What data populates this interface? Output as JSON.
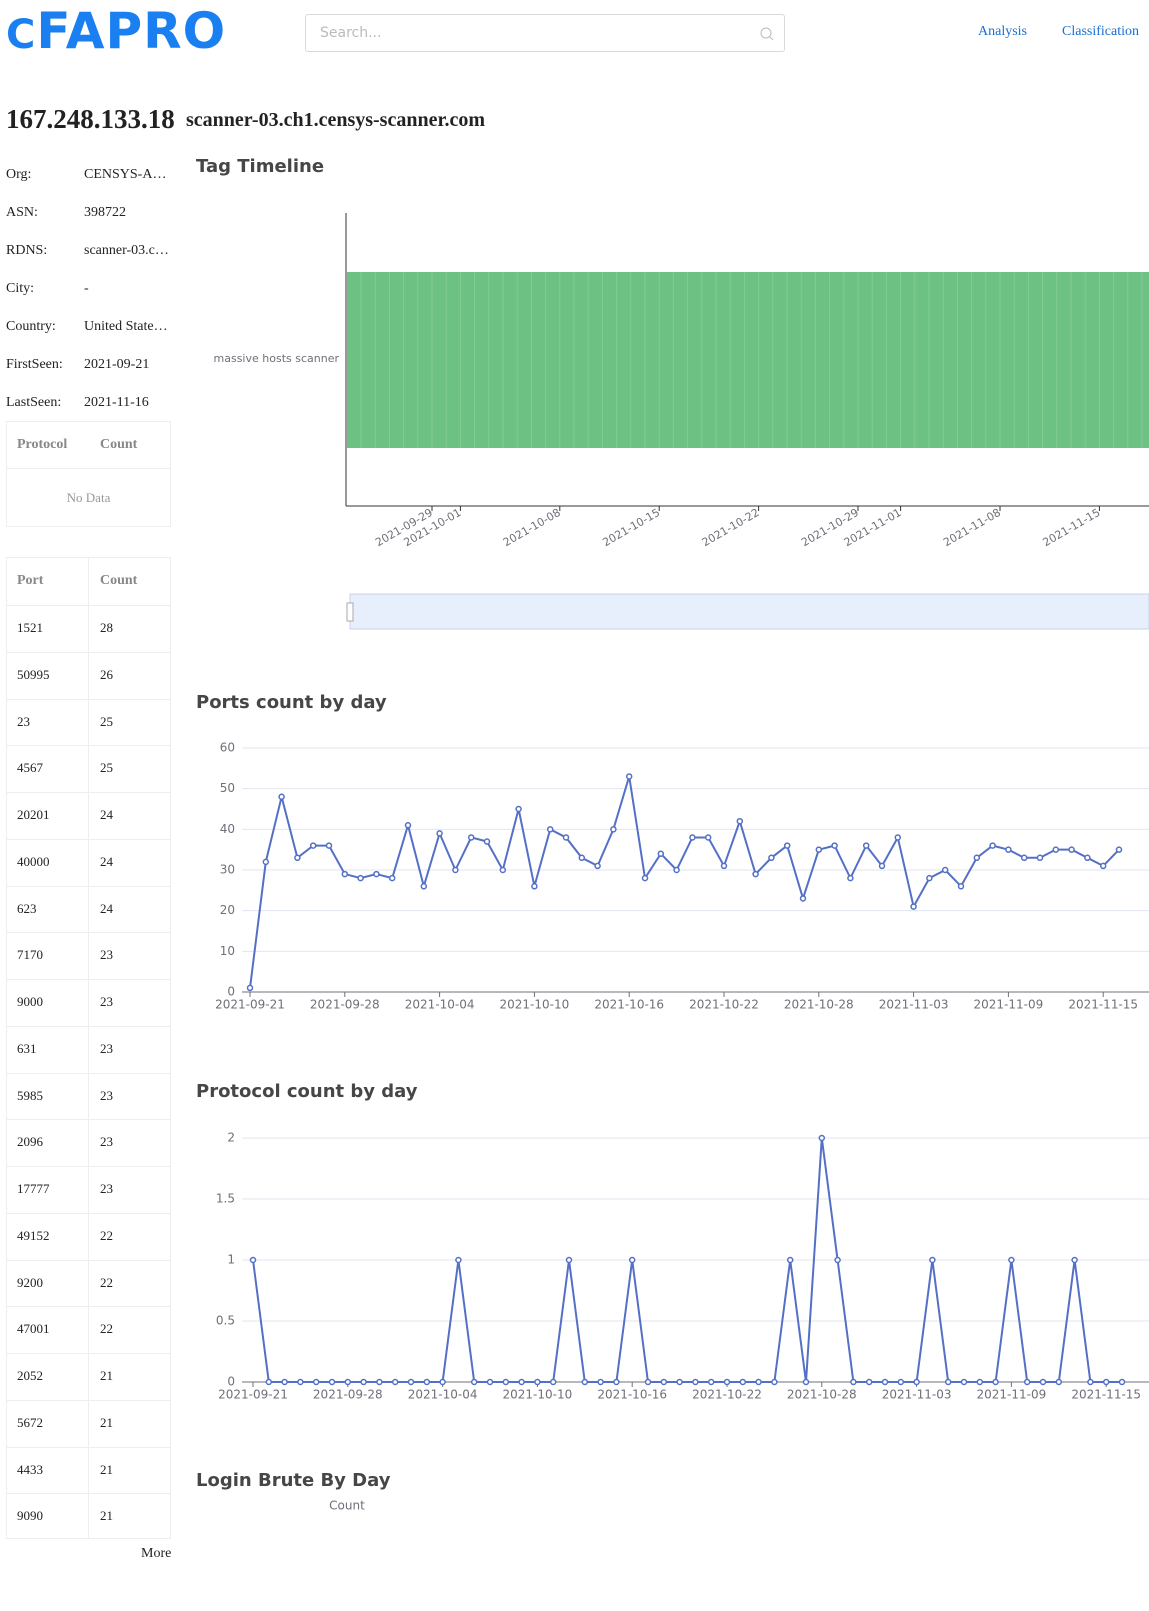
{
  "header": {
    "logo": "FAPRO",
    "search_placeholder": "Search...",
    "nav": [
      "Analysis",
      "Classification"
    ]
  },
  "host": {
    "ip": "167.248.133.18",
    "hostname": "scanner-03.ch1.censys-scanner.com",
    "fields": [
      {
        "label": "Org:",
        "value": "CENSYS-A…"
      },
      {
        "label": "ASN:",
        "value": "398722"
      },
      {
        "label": "RDNS:",
        "value": "scanner-03.c…"
      },
      {
        "label": "City:",
        "value": "-"
      },
      {
        "label": "Country:",
        "value": "United State…"
      },
      {
        "label": "FirstSeen:",
        "value": "2021-09-21"
      },
      {
        "label": "LastSeen:",
        "value": "2021-11-16"
      }
    ]
  },
  "protocol_table": {
    "columns": [
      "Protocol",
      "Count"
    ],
    "empty": "No Data"
  },
  "port_table": {
    "columns": [
      "Port",
      "Count"
    ],
    "rows": [
      [
        "1521",
        28
      ],
      [
        "50995",
        26
      ],
      [
        "23",
        25
      ],
      [
        "4567",
        25
      ],
      [
        "20201",
        24
      ],
      [
        "40000",
        24
      ],
      [
        "623",
        24
      ],
      [
        "7170",
        23
      ],
      [
        "9000",
        23
      ],
      [
        "631",
        23
      ],
      [
        "5985",
        23
      ],
      [
        "2096",
        23
      ],
      [
        "17777",
        23
      ],
      [
        "49152",
        22
      ],
      [
        "9200",
        22
      ],
      [
        "47001",
        22
      ],
      [
        "2052",
        21
      ],
      [
        "5672",
        21
      ],
      [
        "4433",
        21
      ],
      [
        "9090",
        21
      ]
    ],
    "more": "More"
  },
  "chart_data": [
    {
      "type": "timeline",
      "title": "Tag Timeline",
      "categories": [
        "massive hosts scanner"
      ],
      "color": "#6cc183",
      "x": [
        "2021-09-29",
        "2021-10-01",
        "2021-10-08",
        "2021-10-15",
        "2021-10-22",
        "2021-10-29",
        "2021-11-01",
        "2021-11-08",
        "2021-11-15"
      ]
    },
    {
      "type": "line",
      "title": "Ports count by day",
      "categories": [
        "2021-09-21",
        null,
        null,
        null,
        null,
        null,
        "2021-09-28",
        null,
        null,
        null,
        null,
        null,
        "2021-10-04",
        null,
        null,
        null,
        null,
        null,
        "2021-10-10",
        null,
        null,
        null,
        null,
        null,
        "2021-10-16",
        null,
        null,
        null,
        null,
        null,
        "2021-10-22",
        null,
        null,
        null,
        null,
        null,
        "2021-10-28",
        null,
        null,
        null,
        null,
        null,
        "2021-11-03",
        null,
        null,
        null,
        null,
        null,
        "2021-11-09",
        null,
        null,
        null,
        null,
        null,
        "2021-11-15",
        null
      ],
      "series": [
        {
          "name": "Ports",
          "color": "#5470c6",
          "values": [
            1,
            32,
            48,
            33,
            36,
            36,
            29,
            28,
            29,
            28,
            41,
            26,
            39,
            30,
            38,
            37,
            30,
            45,
            26,
            40,
            38,
            33,
            31,
            40,
            53,
            28,
            34,
            30,
            38,
            38,
            31,
            42,
            29,
            33,
            36,
            23,
            35,
            36,
            28,
            36,
            31,
            38,
            21,
            28,
            30,
            26,
            33,
            36,
            35,
            33,
            33,
            35,
            35,
            33,
            31,
            35
          ]
        }
      ],
      "ylim": [
        0,
        60
      ],
      "yticks": [
        0,
        10,
        20,
        30,
        40,
        50,
        60
      ],
      "grid": true
    },
    {
      "type": "line",
      "title": "Protocol count by day",
      "categories": [
        "2021-09-21",
        null,
        null,
        null,
        null,
        null,
        "2021-09-28",
        null,
        null,
        null,
        null,
        null,
        "2021-10-04",
        null,
        null,
        null,
        null,
        null,
        "2021-10-10",
        null,
        null,
        null,
        null,
        null,
        "2021-10-16",
        null,
        null,
        null,
        null,
        null,
        "2021-10-22",
        null,
        null,
        null,
        null,
        null,
        "2021-10-28",
        null,
        null,
        null,
        null,
        null,
        "2021-11-03",
        null,
        null,
        null,
        null,
        null,
        "2021-11-09",
        null,
        null,
        null,
        null,
        null,
        "2021-11-15",
        null
      ],
      "series": [
        {
          "name": "Protocols",
          "color": "#5470c6",
          "values": [
            1,
            0,
            0,
            0,
            0,
            0,
            0,
            0,
            0,
            0,
            0,
            0,
            0,
            1,
            0,
            0,
            0,
            0,
            0,
            0,
            1,
            0,
            0,
            0,
            1,
            0,
            0,
            0,
            0,
            0,
            0,
            0,
            0,
            0,
            1,
            0,
            2,
            1,
            0,
            0,
            0,
            0,
            0,
            1,
            0,
            0,
            0,
            0,
            1,
            0,
            0,
            0,
            1,
            0,
            0,
            0
          ]
        }
      ],
      "ylim": [
        0,
        2
      ],
      "yticks": [
        0,
        0.5,
        1,
        1.5,
        2
      ],
      "grid": true
    },
    {
      "type": "empty",
      "title": "Login Brute By Day",
      "y_name": "Count"
    }
  ]
}
